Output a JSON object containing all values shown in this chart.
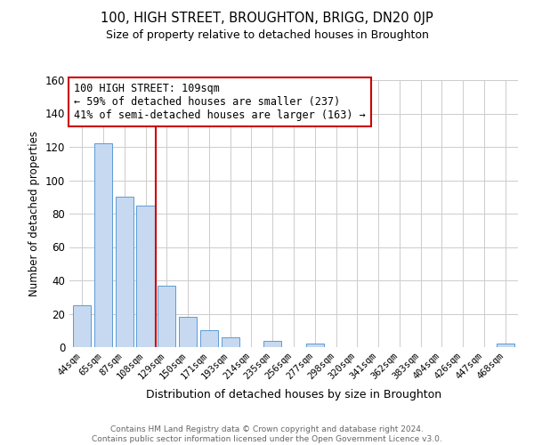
{
  "title": "100, HIGH STREET, BROUGHTON, BRIGG, DN20 0JP",
  "subtitle": "Size of property relative to detached houses in Broughton",
  "xlabel": "Distribution of detached houses by size in Broughton",
  "ylabel": "Number of detached properties",
  "bar_labels": [
    "44sqm",
    "65sqm",
    "87sqm",
    "108sqm",
    "129sqm",
    "150sqm",
    "171sqm",
    "193sqm",
    "214sqm",
    "235sqm",
    "256sqm",
    "277sqm",
    "298sqm",
    "320sqm",
    "341sqm",
    "362sqm",
    "383sqm",
    "404sqm",
    "426sqm",
    "447sqm",
    "468sqm"
  ],
  "bar_values": [
    25,
    122,
    90,
    85,
    37,
    18,
    10,
    6,
    0,
    4,
    0,
    2,
    0,
    0,
    0,
    0,
    0,
    0,
    0,
    0,
    2
  ],
  "bar_color": "#c6d9f0",
  "bar_edge_color": "#5b9bd5",
  "ylim": [
    0,
    160
  ],
  "yticks": [
    0,
    20,
    40,
    60,
    80,
    100,
    120,
    140,
    160
  ],
  "vline_x": 3.5,
  "vline_color": "#cc0000",
  "annotation_text": "100 HIGH STREET: 109sqm\n← 59% of detached houses are smaller (237)\n41% of semi-detached houses are larger (163) →",
  "annotation_box_color": "#ffffff",
  "annotation_box_edge_color": "#cc0000",
  "footer_text": "Contains HM Land Registry data © Crown copyright and database right 2024.\nContains public sector information licensed under the Open Government Licence v3.0.",
  "bg_color": "#ffffff",
  "grid_color": "#cccccc"
}
